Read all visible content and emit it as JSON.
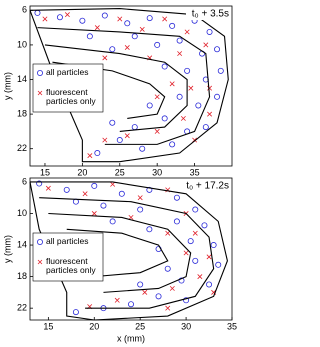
{
  "chart_data": [
    {
      "type": "scatter",
      "annotation": "t₀ + 3.5s",
      "ylabel": "y (mm)",
      "xlim": [
        13,
        40
      ],
      "ylim": [
        5.5,
        24
      ],
      "y_inverted": true,
      "xticks": [
        15,
        20,
        25,
        30,
        35
      ],
      "yticks": [
        6,
        10,
        14,
        18,
        22
      ],
      "legend": "left",
      "line_color": "#000000",
      "series": [
        {
          "name": "all particles",
          "color": "#2a2ad8",
          "marker": "circle",
          "x": [
            14,
            17,
            20,
            23,
            26,
            29,
            32,
            35,
            37,
            38,
            36,
            33,
            30,
            27,
            24,
            21,
            38.5,
            36.5,
            34,
            31,
            38,
            35.5,
            33,
            36.5,
            34,
            31,
            32,
            28,
            25,
            22,
            24,
            27,
            29
          ],
          "y": [
            6.3,
            6.8,
            7.2,
            6.6,
            7.5,
            6.9,
            7.8,
            7.2,
            8.5,
            10.5,
            11,
            9.5,
            10,
            9,
            10.5,
            9,
            13,
            14,
            13,
            12.5,
            16,
            17,
            16,
            19.5,
            20,
            18.5,
            21.5,
            22,
            21,
            22.5,
            19,
            19.5,
            17
          ]
        },
        {
          "name": "fluorescent particles only",
          "color": "#e0202a",
          "marker": "x",
          "x": [
            15,
            18,
            22,
            25,
            28,
            31,
            34,
            36.5,
            33,
            29,
            26,
            23,
            37,
            34.5,
            32,
            37,
            33.5,
            30,
            26,
            23,
            21,
            30,
            35
          ],
          "y": [
            7,
            6.5,
            8,
            7,
            8.2,
            7,
            8.5,
            10,
            11,
            11.5,
            10.3,
            11.5,
            15,
            15,
            14.5,
            18,
            18.5,
            20,
            20.5,
            21,
            22.8,
            16,
            21
          ]
        }
      ],
      "lines": [
        {
          "x": [
            13,
            25,
            35,
            39,
            39.5,
            38,
            33,
            25,
            20,
            20,
            16,
            13
          ],
          "y": [
            6,
            5.8,
            6.5,
            9,
            14,
            19,
            22.5,
            23.5,
            23.5,
            21,
            13,
            6
          ]
        },
        {
          "x": [
            14,
            25,
            33,
            36.5,
            37,
            35,
            30,
            23
          ],
          "y": [
            8,
            8.5,
            9,
            11,
            16,
            20,
            21.5,
            21.5
          ]
        },
        {
          "x": [
            15,
            25,
            31,
            34,
            34,
            31,
            25
          ],
          "y": [
            10,
            11,
            12,
            14,
            17,
            19.5,
            20
          ]
        },
        {
          "x": [
            16,
            24,
            29,
            31,
            30,
            26
          ],
          "y": [
            12,
            13,
            14.5,
            16,
            18,
            18.5
          ]
        }
      ]
    },
    {
      "type": "scatter",
      "annotation": "t₀ + 17.2s",
      "ylabel": "y (mm)",
      "xlabel": "x (mm)",
      "xlim": [
        13,
        35
      ],
      "ylim": [
        5.5,
        23.5
      ],
      "y_inverted": true,
      "xticks": [
        15,
        20,
        25,
        30,
        35
      ],
      "yticks": [
        6,
        10,
        14,
        18,
        22
      ],
      "legend": "left",
      "line_color": "#000000",
      "series": [
        {
          "name": "all particles",
          "color": "#2a2ad8",
          "marker": "circle",
          "x": [
            14,
            17,
            20,
            23,
            26,
            29,
            31,
            25,
            21,
            18,
            32,
            29,
            26,
            33,
            30.5,
            33.5,
            31,
            32.5,
            29.5,
            30,
            27,
            24,
            21,
            18,
            25,
            28,
            27,
            22
          ],
          "y": [
            6.2,
            7,
            6.5,
            7.5,
            7,
            8,
            9.5,
            9.5,
            9,
            8.5,
            11.5,
            11,
            12,
            14,
            13.5,
            16.5,
            16,
            19,
            18.5,
            21,
            20.5,
            21.5,
            22,
            22.5,
            19,
            17,
            14.5,
            11
          ]
        },
        {
          "name": "fluorescent particles only",
          "color": "#e0202a",
          "marker": "x",
          "x": [
            15,
            19,
            22,
            25,
            28,
            30,
            24,
            31,
            28,
            32.5,
            30,
            31.5,
            28.5,
            25.5,
            22.5,
            19.5,
            28,
            33,
            20
          ],
          "y": [
            6.8,
            7.5,
            6.3,
            8,
            7,
            10,
            10.5,
            12.5,
            12.5,
            15.5,
            15,
            18,
            19.5,
            20,
            21,
            21.8,
            22,
            20,
            10
          ]
        }
      ],
      "lines": [
        {
          "x": [
            13,
            22,
            30,
            33.5,
            34.5,
            33,
            28,
            20,
            17,
            17,
            14,
            13
          ],
          "y": [
            6,
            6,
            7.5,
            11,
            16,
            20.5,
            23,
            23.5,
            23,
            20,
            12,
            6
          ]
        },
        {
          "x": [
            14,
            24,
            30,
            32.5,
            33,
            31,
            26,
            19
          ],
          "y": [
            8,
            8.5,
            10,
            13,
            17,
            20.5,
            22,
            22
          ]
        },
        {
          "x": [
            15,
            23,
            28,
            30.5,
            30,
            27,
            21
          ],
          "y": [
            10,
            10.5,
            12,
            15,
            18,
            19.5,
            20
          ]
        },
        {
          "x": [
            17,
            23,
            27,
            28,
            25,
            20
          ],
          "y": [
            12,
            12.5,
            14,
            16,
            17.5,
            18
          ]
        }
      ]
    }
  ]
}
